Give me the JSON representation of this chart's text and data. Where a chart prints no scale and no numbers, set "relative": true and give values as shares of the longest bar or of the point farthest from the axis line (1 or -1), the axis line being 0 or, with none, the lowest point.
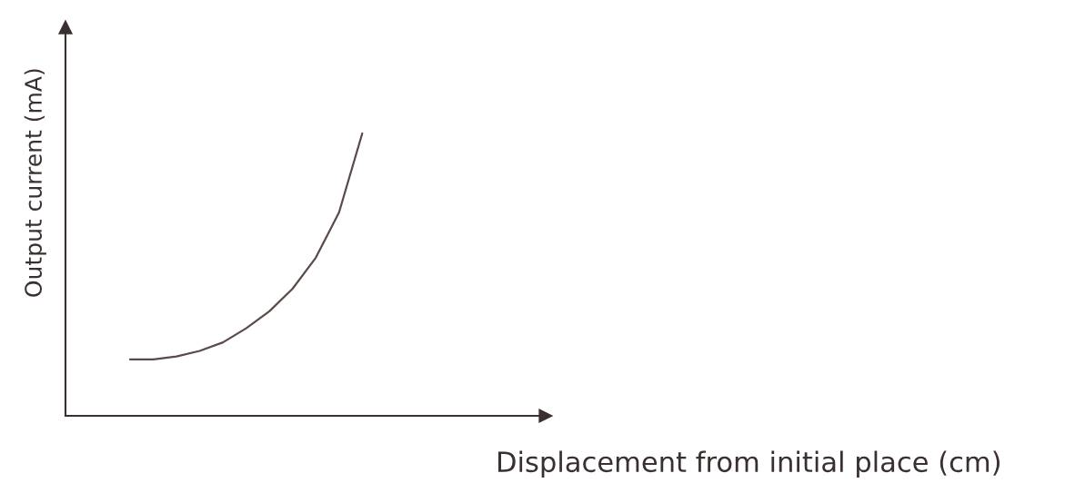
{
  "chart_data": {
    "type": "line",
    "relative": true,
    "xlabel": "Displacement from initial place (cm)",
    "ylabel": "Output current (mA)",
    "categories": [
      null,
      null,
      null,
      null,
      null,
      null,
      null,
      null,
      null,
      null,
      null
    ],
    "series": [
      {
        "color": "#5a4a48",
        "values": [
          0.2,
          0.2,
          0.21,
          0.23,
          0.26,
          0.31,
          0.37,
          0.45,
          0.56,
          0.72,
          1.0
        ]
      }
    ],
    "marker": "none",
    "line_style": "solid",
    "grid": false,
    "legend": false
  }
}
